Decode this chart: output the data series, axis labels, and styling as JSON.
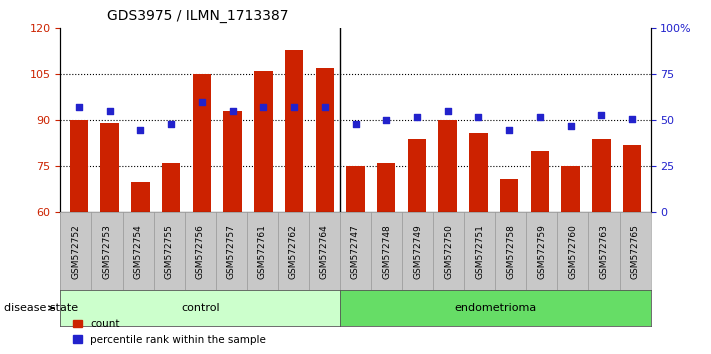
{
  "title": "GDS3975 / ILMN_1713387",
  "samples": [
    "GSM572752",
    "GSM572753",
    "GSM572754",
    "GSM572755",
    "GSM572756",
    "GSM572757",
    "GSM572761",
    "GSM572762",
    "GSM572764",
    "GSM572747",
    "GSM572748",
    "GSM572749",
    "GSM572750",
    "GSM572751",
    "GSM572758",
    "GSM572759",
    "GSM572760",
    "GSM572763",
    "GSM572765"
  ],
  "count_values": [
    90,
    89,
    70,
    76,
    105,
    93,
    106,
    113,
    107,
    75,
    76,
    84,
    90,
    86,
    71,
    80,
    75,
    84,
    82
  ],
  "percentile_values": [
    57,
    55,
    45,
    48,
    60,
    55,
    57,
    57,
    57,
    48,
    50,
    52,
    55,
    52,
    45,
    52,
    47,
    53,
    51
  ],
  "control_count": 9,
  "endometrioma_count": 10,
  "bar_color": "#cc2200",
  "dot_color": "#2222cc",
  "ylim_left": [
    60,
    120
  ],
  "ylim_right": [
    0,
    100
  ],
  "yticks_left": [
    60,
    75,
    90,
    105,
    120
  ],
  "yticks_right": [
    0,
    25,
    50,
    75,
    100
  ],
  "hline_values": [
    75,
    90,
    105
  ],
  "control_color": "#ccffcc",
  "endometrioma_color": "#66dd66",
  "tick_bg_color": "#c8c8c8",
  "title_fontsize": 10,
  "tick_fontsize": 6.5,
  "label_fontsize": 8
}
